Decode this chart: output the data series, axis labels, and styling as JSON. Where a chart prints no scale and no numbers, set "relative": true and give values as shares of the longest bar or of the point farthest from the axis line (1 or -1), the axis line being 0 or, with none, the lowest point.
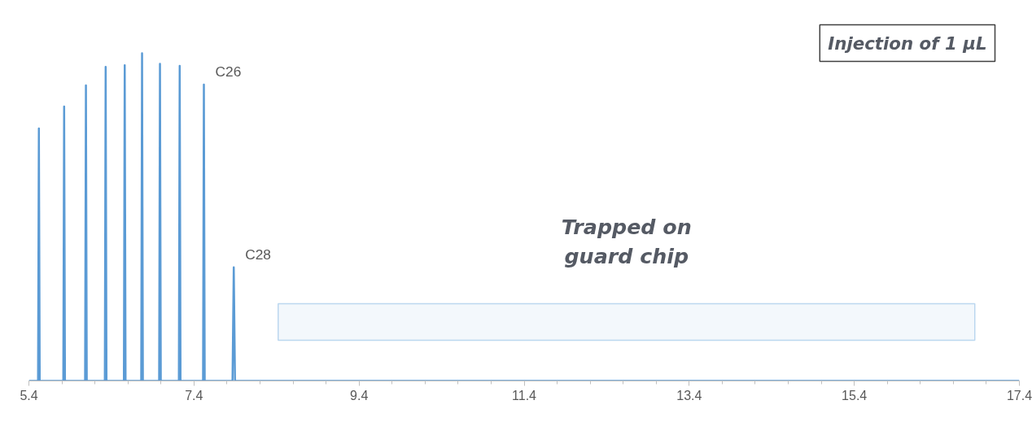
{
  "chart_data": {
    "type": "line",
    "title": "Injection of 1 µL",
    "relative": true,
    "x": [
      5.4,
      5.511,
      5.521,
      5.531,
      5.817,
      5.827,
      5.837,
      6.081,
      6.091,
      6.101,
      6.32,
      6.33,
      6.34,
      6.551,
      6.561,
      6.571,
      6.761,
      6.771,
      6.781,
      6.978,
      6.988,
      6.998,
      7.217,
      7.227,
      7.237,
      7.51,
      7.52,
      7.53,
      7.867,
      7.882,
      7.897,
      17.4
    ],
    "series": [
      {
        "color": "#5b9bd5",
        "values": [
          0,
          0,
          0.771,
          0,
          0,
          0.838,
          0,
          0,
          0.902,
          0,
          0,
          0.959,
          0,
          0,
          0.964,
          0,
          0,
          1,
          0,
          0,
          0.968,
          0,
          0,
          0.962,
          0,
          0,
          0.905,
          0,
          0,
          0.347,
          0,
          0
        ]
      }
    ],
    "xlim": [
      5.4,
      17.4
    ],
    "xticks": [
      5.4,
      7.4,
      9.4,
      11.4,
      13.4,
      15.4,
      17.4
    ],
    "tick_labels": "x",
    "grid": false,
    "annotations": [
      {
        "text": "C26",
        "x": 7.52,
        "y": 0.905
      },
      {
        "text": "C28",
        "x": 7.882,
        "y": 0.347
      }
    ],
    "bands": [
      {
        "axis": "x",
        "from": 8.42,
        "to": 16.86,
        "label": "Trapped on\nguard chip",
        "color": "#2e86d0"
      }
    ]
  }
}
